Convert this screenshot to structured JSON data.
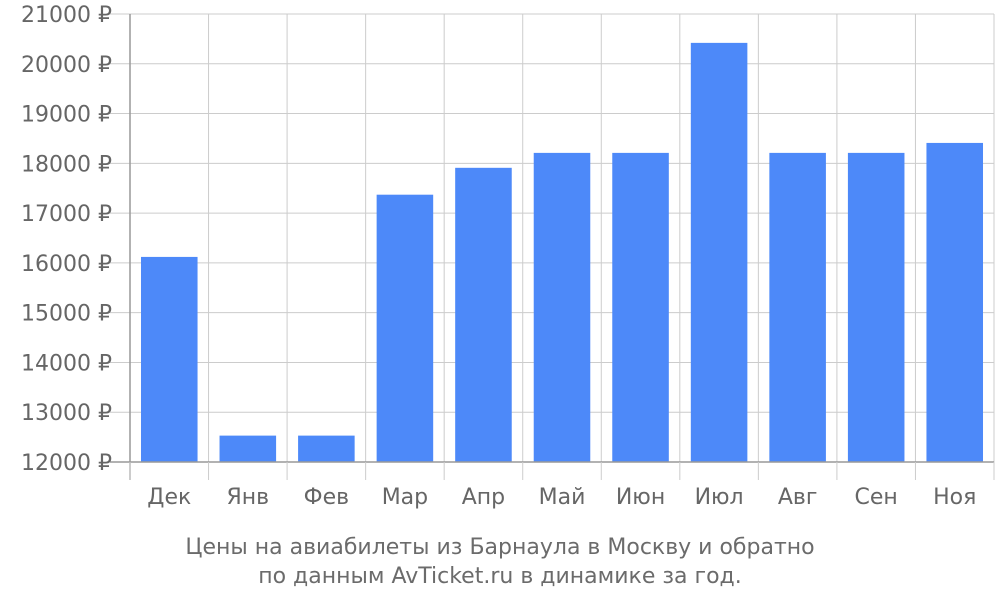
{
  "chart_data": {
    "type": "bar",
    "categories": [
      "Дек",
      "Янв",
      "Фев",
      "Мар",
      "Апр",
      "Май",
      "Июн",
      "Июл",
      "Авг",
      "Сен",
      "Ноя"
    ],
    "values": [
      16120,
      12530,
      12530,
      17370,
      17910,
      18210,
      18210,
      20420,
      18210,
      18210,
      18410
    ],
    "ylim": [
      12000,
      21000
    ],
    "yticks": [
      12000,
      13000,
      14000,
      15000,
      16000,
      17000,
      18000,
      19000,
      20000,
      21000
    ],
    "ytick_labels": [
      "12000 ₽",
      "13000 ₽",
      "14000 ₽",
      "15000 ₽",
      "16000 ₽",
      "17000 ₽",
      "18000 ₽",
      "19000 ₽",
      "20000 ₽",
      "21000 ₽"
    ],
    "grid": true,
    "bar_color": "#4d89f9",
    "caption_line1": "Цены на авиабилеты из Барнаула в Москву и обратно",
    "caption_line2": "по данным AvTicket.ru в динамике за год."
  }
}
